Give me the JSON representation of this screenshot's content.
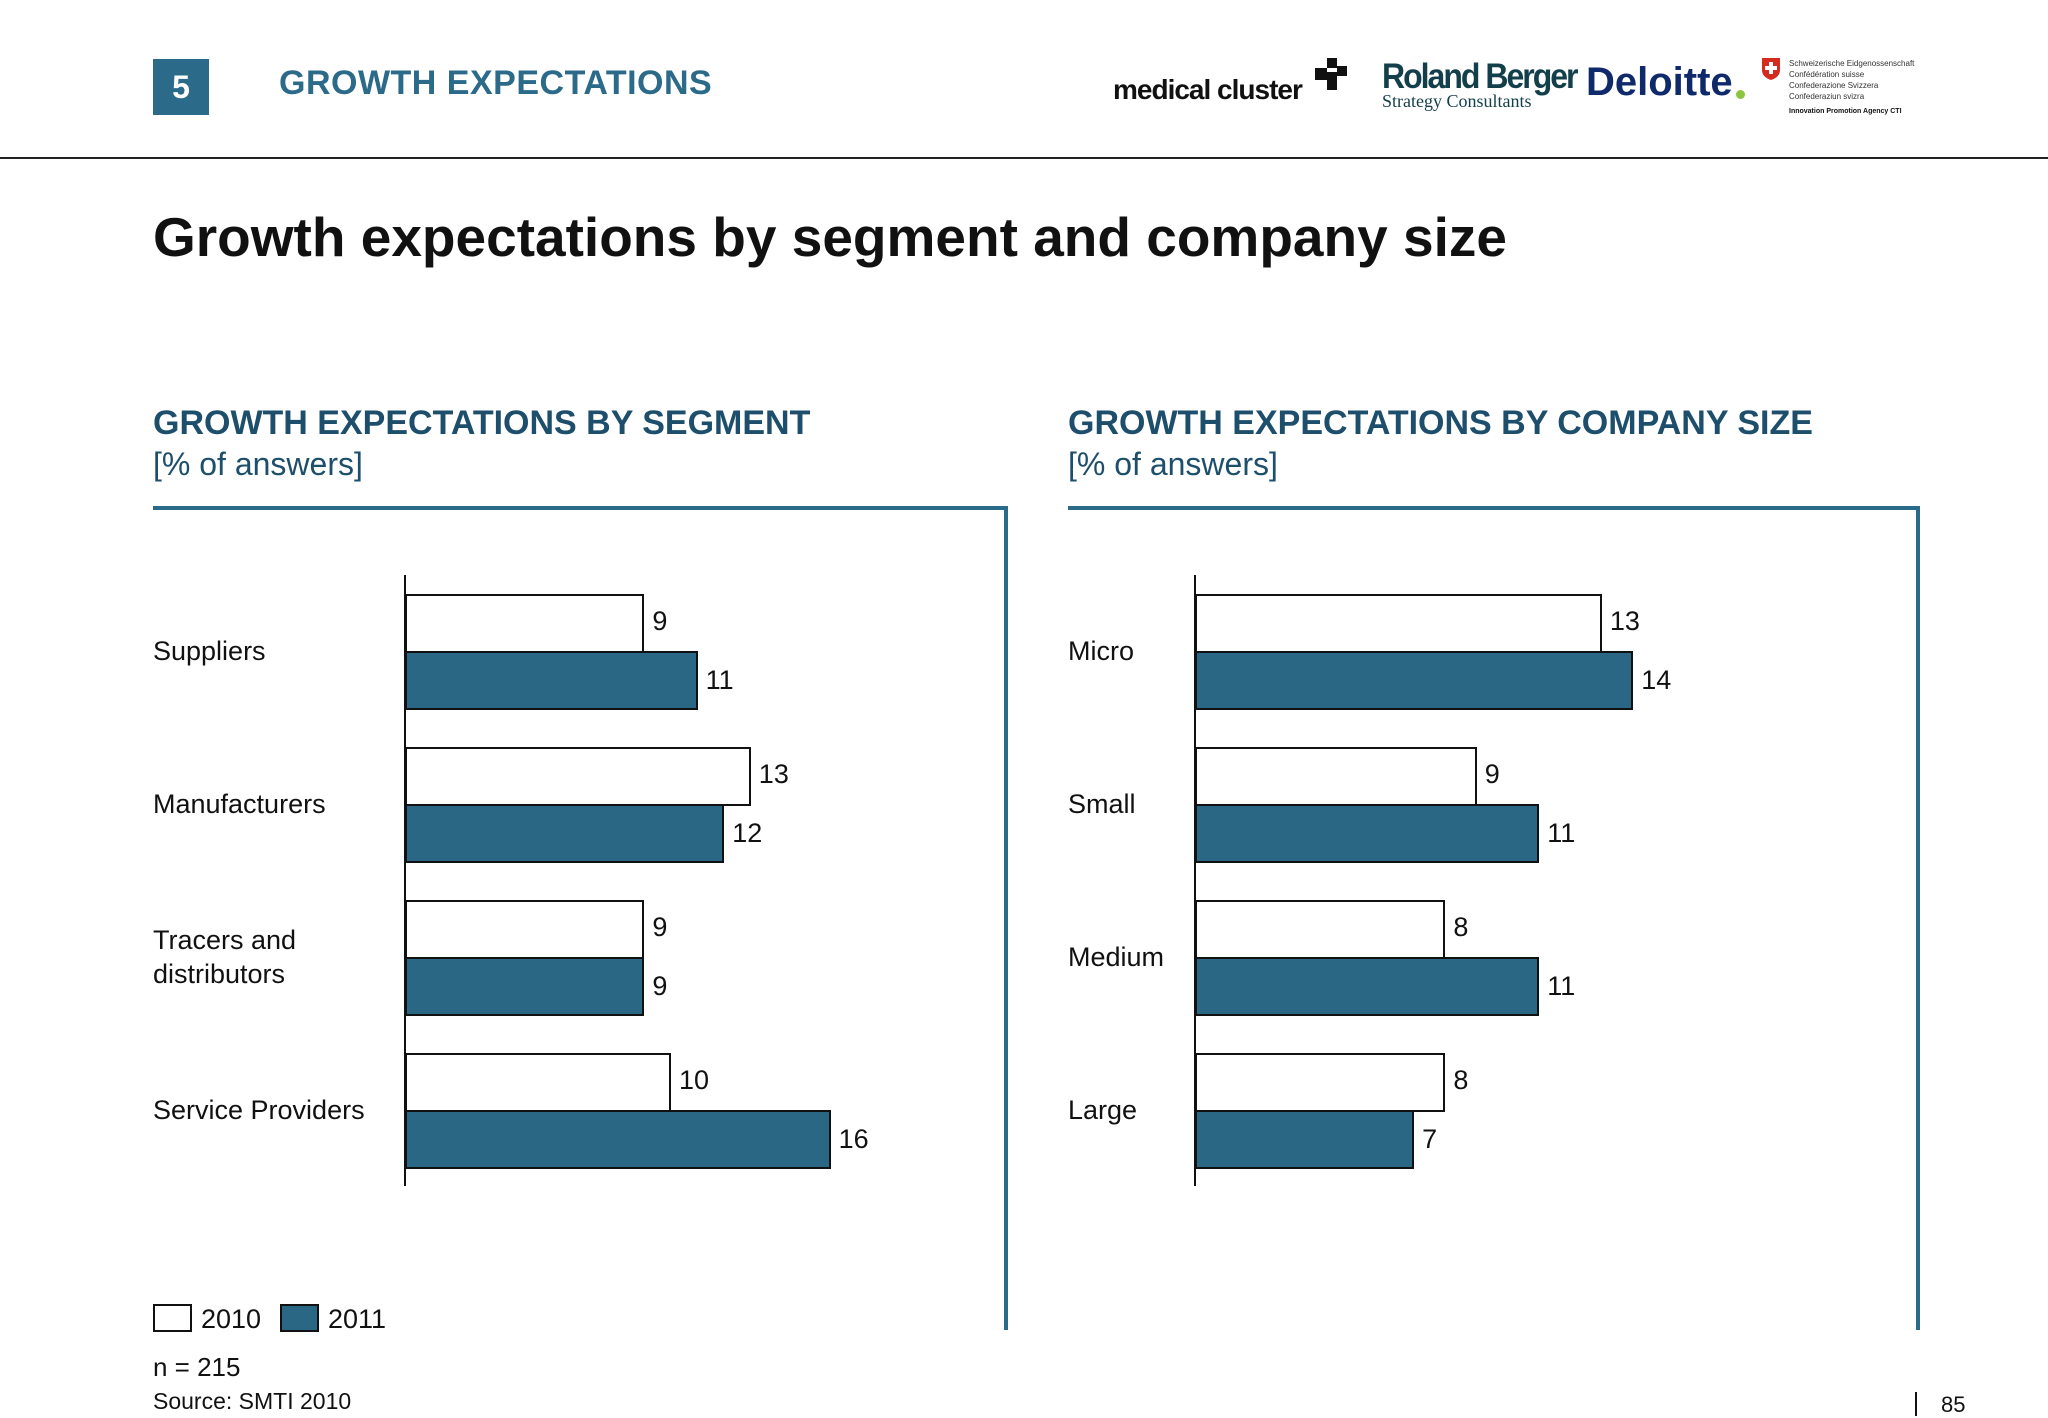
{
  "header": {
    "section_number": "5",
    "section_title": "GROWTH EXPECTATIONS"
  },
  "logos": {
    "medical_cluster": "medical cluster",
    "roland_berger": "Roland Berger",
    "roland_berger_sub": "Strategy Consultants",
    "deloitte": "Deloitte",
    "swiss": [
      "Schweizerische Eidgenossenschaft",
      "Confédération suisse",
      "Confederazione Svizzera",
      "Confederaziun svizra"
    ],
    "cti": "Innovation Promotion Agency CTI"
  },
  "title": "Growth expectations by segment and company size",
  "colors": {
    "accent": "#2b6a89",
    "bar_2011": "#2a6785",
    "bar_2010": "#ffffff"
  },
  "chart_data": [
    {
      "type": "bar",
      "orientation": "horizontal",
      "title": "GROWTH EXPECTATIONS BY SEGMENT",
      "subtitle": "[% of answers]",
      "categories": [
        "Suppliers",
        "Manufacturers",
        "Tracers and distributors",
        "Service Providers"
      ],
      "series": [
        {
          "name": "2010",
          "values": [
            9,
            13,
            9,
            10
          ]
        },
        {
          "name": "2011",
          "values": [
            11,
            12,
            9,
            16
          ]
        }
      ],
      "xlim": [
        0,
        16
      ]
    },
    {
      "type": "bar",
      "orientation": "horizontal",
      "title": "GROWTH EXPECTATIONS BY COMPANY SIZE",
      "subtitle": "[% of answers]",
      "categories": [
        "Micro",
        "Small",
        "Medium",
        "Large"
      ],
      "series": [
        {
          "name": "2010",
          "values": [
            13,
            9,
            8,
            8
          ]
        },
        {
          "name": "2011",
          "values": [
            14,
            11,
            11,
            7
          ]
        }
      ],
      "xlim": [
        0,
        14
      ]
    }
  ],
  "legend": {
    "items": [
      "2010",
      "2011"
    ],
    "placement": "bottom-left"
  },
  "footer": {
    "n": "n = 215",
    "source": "Source:  SMTI 2010",
    "page": "85"
  }
}
